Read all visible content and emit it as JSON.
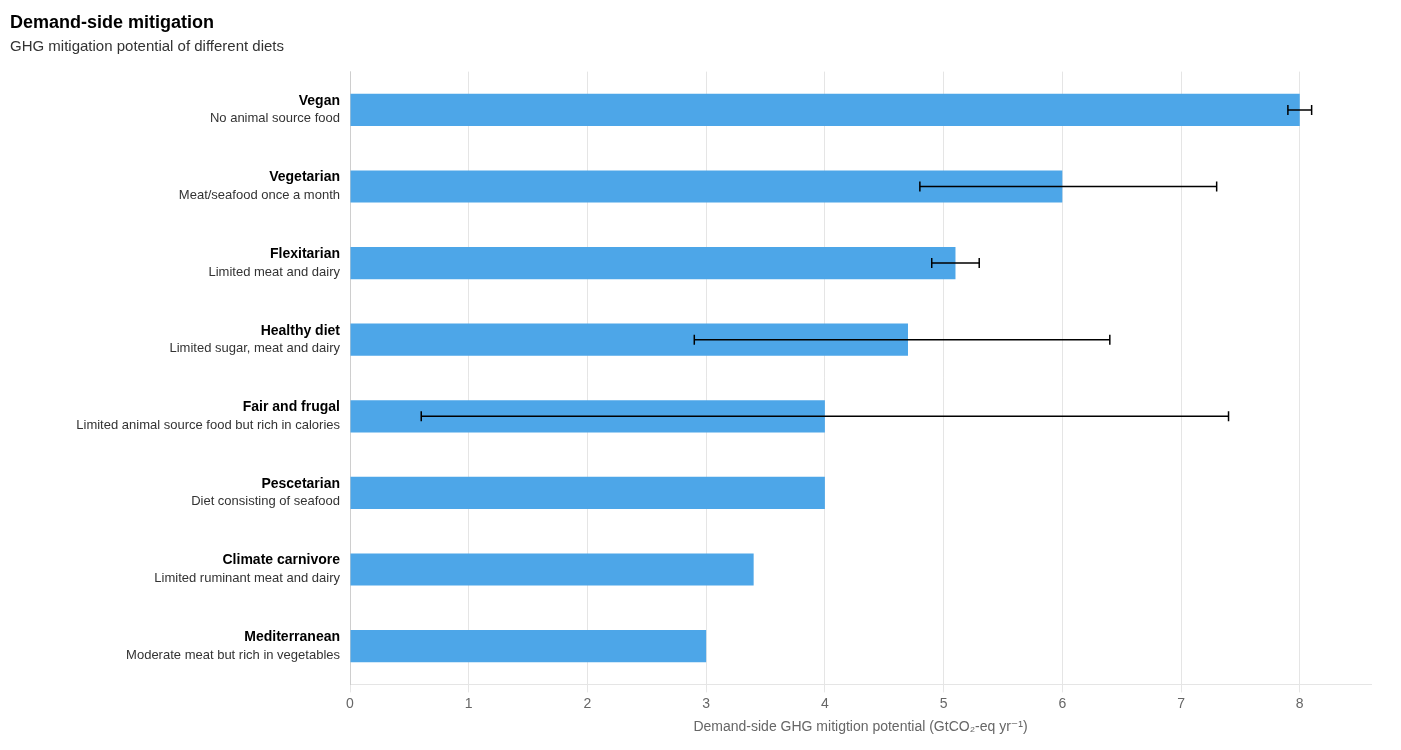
{
  "chart_data": {
    "type": "bar",
    "orientation": "horizontal",
    "title": "Demand-side mitigation",
    "subtitle": "GHG mitigation potential of different diets",
    "xlabel": "Demand-side GHG mitigtion potential (GtCO₂-eq yr⁻¹)",
    "categories": [
      [
        "Vegan",
        "No animal source food"
      ],
      [
        "Vegetarian",
        "Meat/seafood once a month"
      ],
      [
        "Flexitarian",
        "Limited meat and dairy"
      ],
      [
        "Healthy diet",
        "Limited sugar, meat and dairy"
      ],
      [
        "Fair and frugal",
        "Limited animal source food but rich in calories"
      ],
      [
        "Pescetarian",
        "Diet consisting of seafood"
      ],
      [
        "Climate carnivore",
        "Limited ruminant meat and dairy"
      ],
      [
        "Mediterranean",
        "Moderate meat but rich in vegetables"
      ]
    ],
    "values": [
      8.0,
      6.0,
      5.1,
      4.7,
      4.0,
      4.0,
      3.4,
      3.0
    ],
    "error_low": [
      7.9,
      4.8,
      4.9,
      2.9,
      0.6,
      null,
      null,
      null
    ],
    "error_high": [
      8.1,
      7.3,
      5.3,
      6.4,
      7.4,
      null,
      null,
      null
    ],
    "color": "#4da6e8",
    "xlim": [
      0,
      8.6
    ],
    "xticks": [
      0,
      1,
      2,
      3,
      4,
      5,
      6,
      7,
      8
    ],
    "grid": "x"
  }
}
